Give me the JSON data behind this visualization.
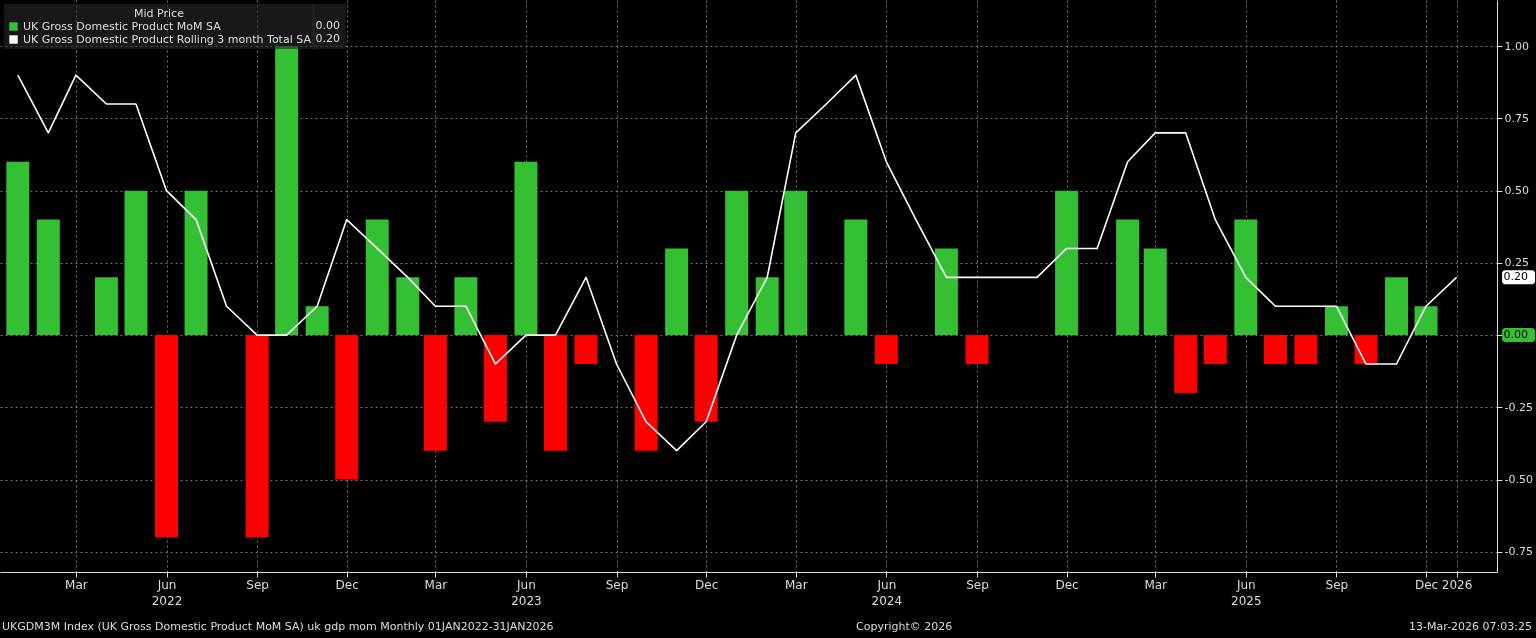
{
  "chart_data": {
    "type": "bar",
    "legend_title": "Mid Price",
    "legend": "top left",
    "grid": true,
    "x": [
      "2022-01",
      "2022-02",
      "2022-03",
      "2022-04",
      "2022-05",
      "2022-06",
      "2022-07",
      "2022-08",
      "2022-09",
      "2022-10",
      "2022-11",
      "2022-12",
      "2023-01",
      "2023-02",
      "2023-03",
      "2023-04",
      "2023-05",
      "2023-06",
      "2023-07",
      "2023-08",
      "2023-09",
      "2023-10",
      "2023-11",
      "2023-12",
      "2024-01",
      "2024-02",
      "2024-03",
      "2024-04",
      "2024-05",
      "2024-06",
      "2024-07",
      "2024-08",
      "2024-09",
      "2024-10",
      "2024-11",
      "2024-12",
      "2025-01",
      "2025-02",
      "2025-03",
      "2025-04",
      "2025-05",
      "2025-06",
      "2025-07",
      "2025-08",
      "2025-09",
      "2025-10",
      "2025-11",
      "2025-12",
      "2026-01"
    ],
    "series": [
      {
        "name": "UK Gross Domestic Product MoM SA",
        "color": "#33c133",
        "values": [
          0.6,
          0.4,
          0,
          0.2,
          0.5,
          -0.7,
          0.5,
          0,
          -0.7,
          1.0,
          0.1,
          -0.5,
          0.4,
          0.2,
          -0.4,
          0.2,
          -0.3,
          0.6,
          -0.4,
          -0.1,
          0,
          -0.4,
          0.3,
          -0.3,
          0.5,
          0.2,
          0.5,
          0,
          0.4,
          -0.1,
          0,
          0.3,
          -0.1,
          0,
          0,
          0.5,
          0,
          0.4,
          0.3,
          -0.2,
          -0.1,
          0.4,
          -0.1,
          -0.1,
          0.1,
          -0.1,
          0.2,
          0.1,
          0
        ],
        "colors": [
          "#33c133",
          "#33c133",
          "#33c133",
          "#33c133",
          "#33c133",
          "#ff0000",
          "#33c133",
          "#33c133",
          "#ff0000",
          "#33c133",
          "#33c133",
          "#ff0000",
          "#33c133",
          "#33c133",
          "#ff0000",
          "#33c133",
          "#ff0000",
          "#33c133",
          "#ff0000",
          "#ff0000",
          "#33c133",
          "#ff0000",
          "#33c133",
          "#ff0000",
          "#33c133",
          "#33c133",
          "#33c133",
          "#33c133",
          "#33c133",
          "#ff0000",
          "#33c133",
          "#33c133",
          "#ff0000",
          "#33c133",
          "#33c133",
          "#33c133",
          "#33c133",
          "#33c133",
          "#33c133",
          "#ff0000",
          "#ff0000",
          "#33c133",
          "#ff0000",
          "#ff0000",
          "#33c133",
          "#ff0000",
          "#33c133",
          "#33c133",
          "#33c133"
        ]
      },
      {
        "name": "UK Gross Domestic Product Rolling 3 month Total SA",
        "type": "line",
        "color": "#ffffff",
        "values": [
          0.9,
          0.7,
          0.9,
          0.8,
          0.8,
          0.5,
          0.4,
          0.1,
          0,
          0,
          0.1,
          0.4,
          0.3,
          0.2,
          0.1,
          0.1,
          -0.1,
          0,
          0,
          0.2,
          -0.1,
          -0.3,
          -0.4,
          -0.3,
          0,
          0.2,
          0.7,
          0.8,
          0.9,
          0.6,
          0.4,
          0.2,
          0.2,
          0.2,
          0.2,
          0.3,
          0.3,
          0.6,
          0.7,
          0.7,
          0.4,
          0.2,
          0.1,
          0.1,
          0.1,
          -0.1,
          -0.1,
          0.1,
          0.2
        ]
      }
    ],
    "xlim": [
      "2021-12-19",
      "2026-02-06"
    ],
    "xticks": [
      {
        "value": "2022-03",
        "label": "Mar"
      },
      {
        "value": "2022-06",
        "label": "Jun\n2022"
      },
      {
        "value": "2022-09",
        "label": "Sep"
      },
      {
        "value": "2022-12",
        "label": "Dec"
      },
      {
        "value": "2023-03",
        "label": "Mar"
      },
      {
        "value": "2023-06",
        "label": "Jun\n2023"
      },
      {
        "value": "2023-09",
        "label": "Sep"
      },
      {
        "value": "2023-12",
        "label": "Dec"
      },
      {
        "value": "2024-03",
        "label": "Mar"
      },
      {
        "value": "2024-06",
        "label": "Jun\n2024"
      },
      {
        "value": "2024-09",
        "label": "Sep"
      },
      {
        "value": "2024-12",
        "label": "Dec"
      },
      {
        "value": "2025-03",
        "label": "Mar"
      },
      {
        "value": "2025-06",
        "label": "Jun\n2025"
      },
      {
        "value": "2025-09",
        "label": "Sep"
      },
      {
        "value": "2025-12",
        "label": "Dec"
      },
      {
        "value": "2026-01",
        "label": "2026"
      }
    ],
    "ylim": [
      -0.82,
      1.16
    ],
    "yticks": [
      {
        "value": -0.75,
        "label": "-0.75"
      },
      {
        "value": -0.5,
        "label": "-0.50"
      },
      {
        "value": -0.25,
        "label": "-0.25"
      },
      {
        "value": 0,
        "label": null
      },
      {
        "value": 0.25,
        "label": "0.25"
      },
      {
        "value": 0.5,
        "label": "0.50"
      },
      {
        "value": 0.75,
        "label": "0.75"
      },
      {
        "value": 1,
        "label": "1.00"
      }
    ],
    "annotations": [
      "0.00",
      "0.20",
      "UKGDM3M Index (UK Gross Domestic Product MoM SA) uk gdp mom Monthly 01JAN2022-31JAN2026",
      "Copyright© 2026",
      "13-Mar-2026 07:03:25",
      "0.00",
      "0.20"
    ]
  }
}
